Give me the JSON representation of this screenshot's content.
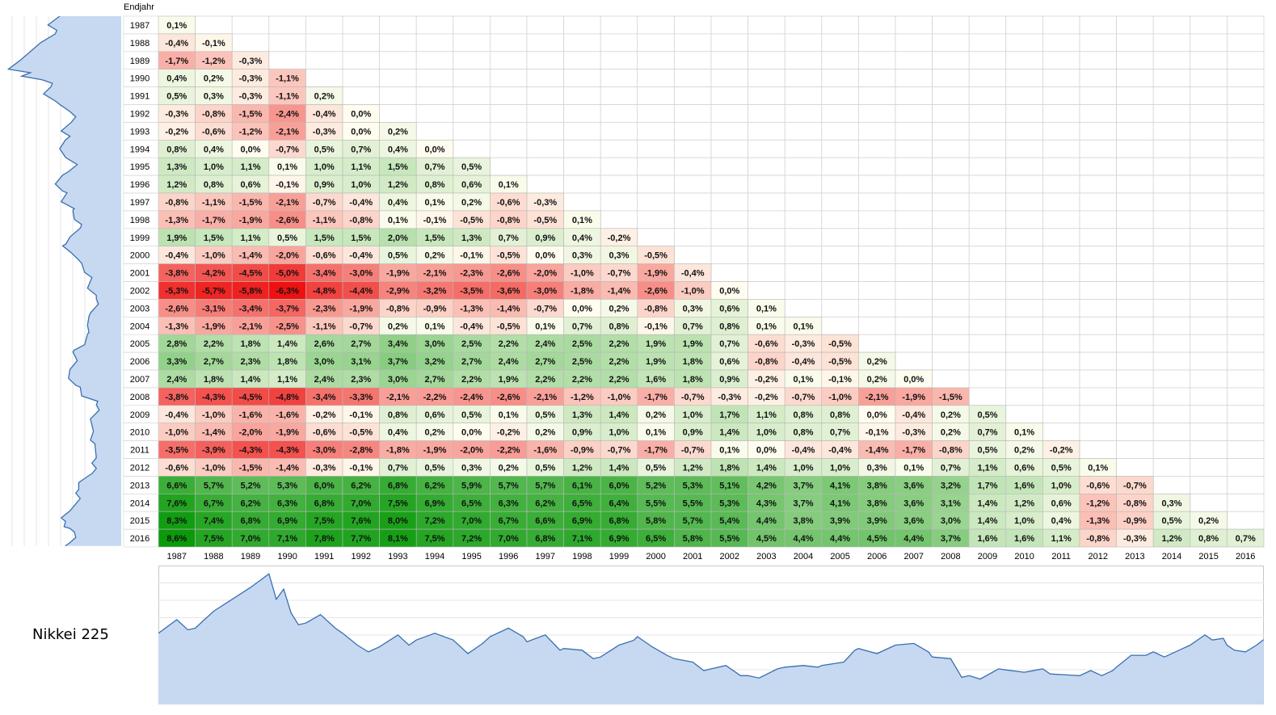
{
  "labels": {
    "end_year_header": "Endjahr",
    "index_name": "Nikkei 225"
  },
  "chart_data": [
    {
      "type": "heatmap",
      "title": "",
      "ylabel": "Endjahr",
      "start_years": [
        "1987",
        "1988",
        "1989",
        "1990",
        "1991",
        "1992",
        "1993",
        "1994",
        "1995",
        "1996",
        "1997",
        "1998",
        "1999",
        "2000",
        "2001",
        "2002",
        "2003",
        "2004",
        "2005",
        "2006",
        "2007",
        "2008",
        "2009",
        "2010",
        "2011",
        "2012",
        "2013",
        "2014",
        "2015",
        "2016"
      ],
      "end_years": [
        "1987",
        "1988",
        "1989",
        "1990",
        "1991",
        "1992",
        "1993",
        "1994",
        "1995",
        "1996",
        "1997",
        "1998",
        "1999",
        "2000",
        "2001",
        "2002",
        "2003",
        "2004",
        "2005",
        "2006",
        "2007",
        "2008",
        "2009",
        "2010",
        "2011",
        "2012",
        "2013",
        "2014",
        "2015",
        "2016"
      ],
      "values": [
        [
          "0,1%"
        ],
        [
          "-0,4%",
          "-0,1%"
        ],
        [
          "-1,7%",
          "-1,2%",
          "-0,3%"
        ],
        [
          "0,4%",
          "0,2%",
          "-0,3%",
          "-1,1%"
        ],
        [
          "0,5%",
          "0,3%",
          "-0,3%",
          "-1,1%",
          "0,2%"
        ],
        [
          "-0,3%",
          "-0,8%",
          "-1,5%",
          "-2,4%",
          "-0,4%",
          "0,0%"
        ],
        [
          "-0,2%",
          "-0,6%",
          "-1,2%",
          "-2,1%",
          "-0,3%",
          "0,0%",
          "0,2%"
        ],
        [
          "0,8%",
          "0,4%",
          "0,0%",
          "-0,7%",
          "0,5%",
          "0,7%",
          "0,4%",
          "0,0%"
        ],
        [
          "1,3%",
          "1,0%",
          "1,1%",
          "0,1%",
          "1,0%",
          "1,1%",
          "1,5%",
          "0,7%",
          "0,5%"
        ],
        [
          "1,2%",
          "0,8%",
          "0,6%",
          "-0,1%",
          "0,9%",
          "1,0%",
          "1,2%",
          "0,8%",
          "0,6%",
          "0,1%"
        ],
        [
          "-0,8%",
          "-1,1%",
          "-1,5%",
          "-2,1%",
          "-0,7%",
          "-0,4%",
          "0,4%",
          "0,1%",
          "0,2%",
          "-0,6%",
          "-0,3%"
        ],
        [
          "-1,3%",
          "-1,7%",
          "-1,9%",
          "-2,6%",
          "-1,1%",
          "-0,8%",
          "0,1%",
          "-0,1%",
          "-0,5%",
          "-0,8%",
          "-0,5%",
          "0,1%"
        ],
        [
          "1,9%",
          "1,5%",
          "1,1%",
          "0,5%",
          "1,5%",
          "1,5%",
          "2,0%",
          "1,5%",
          "1,3%",
          "0,7%",
          "0,9%",
          "0,4%",
          "-0,2%"
        ],
        [
          "-0,4%",
          "-1,0%",
          "-1,4%",
          "-2,0%",
          "-0,6%",
          "-0,4%",
          "0,5%",
          "0,2%",
          "-0,1%",
          "-0,5%",
          "0,0%",
          "0,3%",
          "0,3%",
          "-0,5%"
        ],
        [
          "-3,8%",
          "-4,2%",
          "-4,5%",
          "-5,0%",
          "-3,4%",
          "-3,0%",
          "-1,9%",
          "-2,1%",
          "-2,3%",
          "-2,6%",
          "-2,0%",
          "-1,0%",
          "-0,7%",
          "-1,9%",
          "-0,4%"
        ],
        [
          "-5,3%",
          "-5,7%",
          "-5,8%",
          "-6,3%",
          "-4,8%",
          "-4,4%",
          "-2,9%",
          "-3,2%",
          "-3,5%",
          "-3,6%",
          "-3,0%",
          "-1,8%",
          "-1,4%",
          "-2,6%",
          "-1,0%",
          "0,0%"
        ],
        [
          "-2,6%",
          "-3,1%",
          "-3,4%",
          "-3,7%",
          "-2,3%",
          "-1,9%",
          "-0,8%",
          "-0,9%",
          "-1,3%",
          "-1,4%",
          "-0,7%",
          "0,0%",
          "0,2%",
          "-0,8%",
          "0,3%",
          "0,6%",
          "0,1%"
        ],
        [
          "-1,3%",
          "-1,9%",
          "-2,1%",
          "-2,5%",
          "-1,1%",
          "-0,7%",
          "0,2%",
          "0,1%",
          "-0,4%",
          "-0,5%",
          "0,1%",
          "0,7%",
          "0,8%",
          "-0,1%",
          "0,7%",
          "0,8%",
          "0,1%",
          "0,1%"
        ],
        [
          "2,8%",
          "2,2%",
          "1,8%",
          "1,4%",
          "2,6%",
          "2,7%",
          "3,4%",
          "3,0%",
          "2,5%",
          "2,2%",
          "2,4%",
          "2,5%",
          "2,2%",
          "1,9%",
          "1,9%",
          "0,7%",
          "-0,6%",
          "-0,3%",
          "-0,5%"
        ],
        [
          "3,3%",
          "2,7%",
          "2,3%",
          "1,8%",
          "3,0%",
          "3,1%",
          "3,7%",
          "3,2%",
          "2,7%",
          "2,4%",
          "2,7%",
          "2,5%",
          "2,2%",
          "1,9%",
          "1,8%",
          "0,6%",
          "-0,8%",
          "-0,4%",
          "-0,5%",
          "0,2%"
        ],
        [
          "2,4%",
          "1,8%",
          "1,4%",
          "1,1%",
          "2,4%",
          "2,3%",
          "3,0%",
          "2,7%",
          "2,2%",
          "1,9%",
          "2,2%",
          "2,2%",
          "2,2%",
          "1,6%",
          "1,8%",
          "0,9%",
          "-0,2%",
          "0,1%",
          "-0,1%",
          "0,2%",
          "0,0%"
        ],
        [
          "-3,8%",
          "-4,3%",
          "-4,5%",
          "-4,8%",
          "-3,4%",
          "-3,3%",
          "-2,1%",
          "-2,2%",
          "-2,4%",
          "-2,6%",
          "-2,1%",
          "-1,2%",
          "-1,0%",
          "-1,7%",
          "-0,7%",
          "-0,3%",
          "-0,2%",
          "-0,7%",
          "-1,0%",
          "-2,1%",
          "-1,9%",
          "-1,5%"
        ],
        [
          "-0,4%",
          "-1,0%",
          "-1,6%",
          "-1,6%",
          "-0,2%",
          "-0,1%",
          "0,8%",
          "0,6%",
          "0,5%",
          "0,1%",
          "0,5%",
          "1,3%",
          "1,4%",
          "0,2%",
          "1,0%",
          "1,7%",
          "1,1%",
          "0,8%",
          "0,8%",
          "0,0%",
          "-0,4%",
          "0,2%",
          "0,5%"
        ],
        [
          "-1,0%",
          "-1,4%",
          "-2,0%",
          "-1,9%",
          "-0,6%",
          "-0,5%",
          "0,4%",
          "0,2%",
          "0,0%",
          "-0,2%",
          "0,2%",
          "0,9%",
          "1,0%",
          "0,1%",
          "0,9%",
          "1,4%",
          "1,0%",
          "0,8%",
          "0,7%",
          "-0,1%",
          "-0,3%",
          "0,2%",
          "0,7%",
          "0,1%"
        ],
        [
          "-3,5%",
          "-3,9%",
          "-4,3%",
          "-4,3%",
          "-3,0%",
          "-2,8%",
          "-1,8%",
          "-1,9%",
          "-2,0%",
          "-2,2%",
          "-1,6%",
          "-0,9%",
          "-0,7%",
          "-1,7%",
          "-0,7%",
          "0,1%",
          "0,0%",
          "-0,4%",
          "-0,4%",
          "-1,4%",
          "-1,7%",
          "-0,8%",
          "0,5%",
          "0,2%",
          "-0,2%"
        ],
        [
          "-0,6%",
          "-1,0%",
          "-1,5%",
          "-1,4%",
          "-0,3%",
          "-0,1%",
          "0,7%",
          "0,5%",
          "0,3%",
          "0,2%",
          "0,5%",
          "1,2%",
          "1,4%",
          "0,5%",
          "1,2%",
          "1,8%",
          "1,4%",
          "1,0%",
          "1,0%",
          "0,3%",
          "0,1%",
          "0,7%",
          "1,1%",
          "0,6%",
          "0,5%",
          "0,1%"
        ],
        [
          "6,6%",
          "5,7%",
          "5,2%",
          "5,3%",
          "6,0%",
          "6,2%",
          "6,8%",
          "6,2%",
          "5,9%",
          "5,7%",
          "5,7%",
          "6,1%",
          "6,0%",
          "5,2%",
          "5,3%",
          "5,1%",
          "4,2%",
          "3,7%",
          "4,1%",
          "3,8%",
          "3,6%",
          "3,2%",
          "1,7%",
          "1,6%",
          "1,0%",
          "-0,6%",
          "-0,7%"
        ],
        [
          "7,6%",
          "6,7%",
          "6,2%",
          "6,3%",
          "6,8%",
          "7,0%",
          "7,5%",
          "6,9%",
          "6,5%",
          "6,3%",
          "6,2%",
          "6,5%",
          "6,4%",
          "5,5%",
          "5,5%",
          "5,3%",
          "4,3%",
          "3,7%",
          "4,1%",
          "3,8%",
          "3,6%",
          "3,1%",
          "1,4%",
          "1,2%",
          "0,6%",
          "-1,2%",
          "-0,8%",
          "0,3%"
        ],
        [
          "8,3%",
          "7,4%",
          "6,8%",
          "6,9%",
          "7,5%",
          "7,6%",
          "8,0%",
          "7,2%",
          "7,0%",
          "6,7%",
          "6,6%",
          "6,9%",
          "6,8%",
          "5,8%",
          "5,7%",
          "5,4%",
          "4,4%",
          "3,8%",
          "3,9%",
          "3,9%",
          "3,6%",
          "3,0%",
          "1,4%",
          "1,0%",
          "0,4%",
          "-1,3%",
          "-0,9%",
          "0,5%",
          "0,2%"
        ],
        [
          "8,6%",
          "7,5%",
          "7,0%",
          "7,1%",
          "7,8%",
          "7,7%",
          "8,1%",
          "7,5%",
          "7,2%",
          "7,0%",
          "6,8%",
          "7,1%",
          "6,9%",
          "6,5%",
          "5,8%",
          "5,5%",
          "4,5%",
          "4,4%",
          "4,4%",
          "4,5%",
          "4,4%",
          "3,7%",
          "1,6%",
          "1,6%",
          "1,1%",
          "-0,8%",
          "-0,3%",
          "1,2%",
          "0,8%",
          "0,7%"
        ]
      ],
      "colors": {
        "positive_max": "#0a9a0a",
        "negative_max": "#ee1111",
        "neutral": "#fffdf0",
        "grid": "#d4d4d4",
        "grid_strong": "#b8b8b8"
      }
    },
    {
      "type": "area",
      "title": "Nikkei 225",
      "x_range": [
        "1987",
        "2016"
      ],
      "points": [
        [
          "1987",
          21000
        ],
        [
          "1987.5",
          25000
        ],
        [
          "1987.8",
          22000
        ],
        [
          "1988",
          22500
        ],
        [
          "1988.5",
          27500
        ],
        [
          "1989",
          31000
        ],
        [
          "1989.5",
          34500
        ],
        [
          "1990",
          38500
        ],
        [
          "1990.2",
          31000
        ],
        [
          "1990.4",
          34000
        ],
        [
          "1990.6",
          27000
        ],
        [
          "1990.8",
          23500
        ],
        [
          "1991",
          24000
        ],
        [
          "1991.4",
          26500
        ],
        [
          "1991.8",
          22500
        ],
        [
          "1992",
          21000
        ],
        [
          "1992.4",
          17500
        ],
        [
          "1992.7",
          15500
        ],
        [
          "1993",
          17000
        ],
        [
          "1993.5",
          20500
        ],
        [
          "1993.8",
          17500
        ],
        [
          "1994",
          19000
        ],
        [
          "1994.5",
          21000
        ],
        [
          "1995",
          19000
        ],
        [
          "1995.4",
          15000
        ],
        [
          "1995.8",
          18000
        ],
        [
          "1996",
          20000
        ],
        [
          "1996.5",
          22500
        ],
        [
          "1996.9",
          20000
        ],
        [
          "1997",
          18500
        ],
        [
          "1997.5",
          20500
        ],
        [
          "1997.9",
          16000
        ],
        [
          "1998",
          16500
        ],
        [
          "1998.5",
          16000
        ],
        [
          "1998.8",
          13500
        ],
        [
          "1999",
          14000
        ],
        [
          "1999.5",
          17500
        ],
        [
          "1999.9",
          18900
        ],
        [
          "2000",
          20000
        ],
        [
          "2000.4",
          17000
        ],
        [
          "2000.8",
          14500
        ],
        [
          "2001",
          13500
        ],
        [
          "2001.5",
          12500
        ],
        [
          "2001.8",
          10000
        ],
        [
          "2002",
          10500
        ],
        [
          "2002.4",
          11500
        ],
        [
          "2002.8",
          8500
        ],
        [
          "2003",
          8500
        ],
        [
          "2003.3",
          7800
        ],
        [
          "2003.8",
          10500
        ],
        [
          "2004",
          11000
        ],
        [
          "2004.5",
          11500
        ],
        [
          "2004.9",
          11000
        ],
        [
          "2005",
          11500
        ],
        [
          "2005.6",
          12500
        ],
        [
          "2005.9",
          16000
        ],
        [
          "2006",
          16500
        ],
        [
          "2006.5",
          15000
        ],
        [
          "2006.9",
          17000
        ],
        [
          "2007",
          17500
        ],
        [
          "2007.5",
          18000
        ],
        [
          "2007.9",
          15500
        ],
        [
          "2008",
          14000
        ],
        [
          "2008.5",
          13500
        ],
        [
          "2008.8",
          8000
        ],
        [
          "2009",
          8500
        ],
        [
          "2009.3",
          7500
        ],
        [
          "2009.8",
          10500
        ],
        [
          "2010",
          10200
        ],
        [
          "2010.5",
          9500
        ],
        [
          "2010.9",
          10300
        ],
        [
          "2011",
          10500
        ],
        [
          "2011.2",
          9000
        ],
        [
          "2011.7",
          8700
        ],
        [
          "2012",
          8500
        ],
        [
          "2012.3",
          10000
        ],
        [
          "2012.6",
          8500
        ],
        [
          "2012.9",
          10000
        ],
        [
          "2013",
          11000
        ],
        [
          "2013.4",
          14500
        ],
        [
          "2013.8",
          14500
        ],
        [
          "2014",
          15500
        ],
        [
          "2014.3",
          14000
        ],
        [
          "2014.8",
          16500
        ],
        [
          "2015",
          17500
        ],
        [
          "2015.4",
          20500
        ],
        [
          "2015.6",
          19000
        ],
        [
          "2015.9",
          19500
        ],
        [
          "2016",
          17500
        ],
        [
          "2016.2",
          16000
        ],
        [
          "2016.5",
          15500
        ],
        [
          "2016.8",
          17500
        ],
        [
          "2016.99",
          19100
        ]
      ]
    }
  ]
}
